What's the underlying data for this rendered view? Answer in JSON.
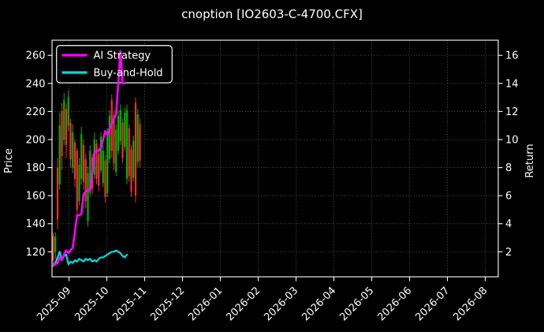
{
  "colors": {
    "background": "#000000",
    "ai_strategy": "#ff00ff",
    "buy_and_hold": "#00dcdc",
    "candle_up": "#00b300",
    "candle_down": "#f23030",
    "grid": "#5c5c5c",
    "spine": "#ffffff",
    "text": "#ffffff",
    "legend_border": "#e8e8e8",
    "legend_face": "#000000"
  },
  "legend": {
    "position": "upper-left",
    "entries": [
      {
        "label": "AI Strategy",
        "color": "#ff00ff"
      },
      {
        "label": "Buy-and-Hold",
        "color": "#00dcdc"
      }
    ]
  },
  "chart_data": {
    "type": "candlestick",
    "title": "cnoption [IO2603-C-4700.CFX]",
    "xlabel": "",
    "ylabel_left": "Price",
    "ylabel_right": "Return",
    "x_tick_labels": [
      "2025-09",
      "2025-10",
      "2025-11",
      "2025-12",
      "2026-01",
      "2026-02",
      "2026-03",
      "2026-04",
      "2026-05",
      "2026-06",
      "2026-07",
      "2026-08"
    ],
    "price_ticks": [
      120,
      140,
      160,
      180,
      200,
      220,
      240,
      260
    ],
    "return_ticks": [
      2,
      4,
      6,
      8,
      10,
      12,
      14,
      16
    ],
    "price_to_return_mapping": "return = (price - 100) / 10",
    "price_range_visible": [
      102,
      271
    ],
    "grid": "dotted",
    "legend_position": "upper-left",
    "candles_note": "ohlc arrays [open, high, low, close]; data spans late Aug 2025 to late Oct 2025, rest of axis to 2026-08 is empty",
    "candles": [
      [
        131,
        133.5,
        110,
        114
      ],
      [
        120,
        134,
        115,
        131
      ],
      [
        180,
        187,
        136,
        143
      ],
      [
        168,
        219,
        164,
        210
      ],
      [
        220,
        226,
        178,
        188
      ],
      [
        200,
        233,
        196,
        228
      ],
      [
        222,
        226,
        187,
        196
      ],
      [
        210,
        235,
        206,
        230
      ],
      [
        212,
        215,
        180,
        186
      ],
      [
        180,
        211,
        176,
        205
      ],
      [
        198,
        200,
        166,
        172
      ],
      [
        192,
        194,
        144,
        150
      ],
      [
        156,
        187,
        153,
        182
      ],
      [
        172,
        209,
        168,
        204
      ],
      [
        196,
        200,
        164,
        170
      ],
      [
        186,
        190,
        151,
        156
      ],
      [
        142,
        181,
        138,
        176
      ],
      [
        162,
        196,
        159,
        192
      ],
      [
        187,
        190,
        161,
        165
      ],
      [
        175,
        205,
        172,
        200
      ],
      [
        197,
        200,
        168,
        172
      ],
      [
        190,
        194,
        163,
        167
      ],
      [
        178,
        205,
        176,
        202
      ],
      [
        169,
        196,
        166,
        192
      ],
      [
        185,
        189,
        155,
        159
      ],
      [
        162,
        208,
        159,
        204
      ],
      [
        186,
        221,
        183,
        217
      ],
      [
        228,
        232,
        187,
        192
      ],
      [
        217,
        221,
        178,
        183
      ],
      [
        177,
        211,
        174,
        207
      ],
      [
        192,
        221,
        189,
        217
      ],
      [
        199,
        225,
        196,
        221
      ],
      [
        212,
        215,
        183,
        187
      ],
      [
        195,
        223,
        192,
        219
      ],
      [
        172,
        225,
        168,
        221
      ],
      [
        208,
        211,
        170,
        174
      ],
      [
        193,
        196,
        159,
        163
      ],
      [
        173,
        203,
        170,
        199
      ],
      [
        226,
        230,
        155,
        160
      ],
      [
        184,
        222,
        180,
        218
      ],
      [
        211,
        215,
        180,
        185
      ]
    ],
    "series": [
      {
        "name": "AI Strategy",
        "color": "#ff00ff",
        "values": [
          110,
          111,
          112,
          116,
          114,
          118,
          121,
          119,
          121,
          123,
          134,
          146,
          146,
          147,
          161,
          163,
          164,
          164,
          177,
          191,
          192,
          192,
          194,
          200,
          206,
          203,
          208,
          211,
          215,
          218,
          240,
          263,
          240,
          240
        ]
      },
      {
        "name": "Buy-and-Hold",
        "color": "#00dcdc",
        "values": [
          110,
          112,
          116,
          120,
          114,
          117,
          118,
          111,
          113,
          112,
          114,
          113,
          115,
          114,
          113,
          115,
          114,
          115,
          113,
          114,
          113,
          115,
          116,
          116,
          117,
          118,
          119,
          120,
          120,
          121,
          120,
          119,
          117,
          116,
          118
        ]
      }
    ]
  }
}
